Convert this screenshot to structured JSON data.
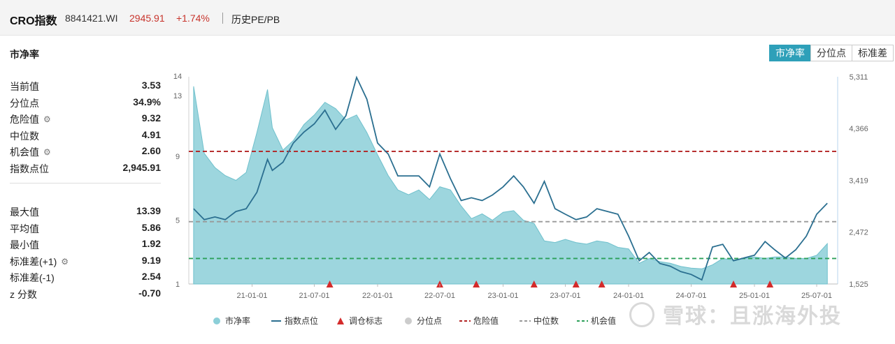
{
  "header": {
    "title": "CRO指数",
    "code": "8841421.WI",
    "price": "2945.91",
    "change": "+1.74%",
    "tab": "历史PE/PB"
  },
  "metric_title": "市净率",
  "stats_top": [
    {
      "label": "当前值",
      "value": "3.53",
      "gear": false
    },
    {
      "label": "分位点",
      "value": "34.9%",
      "gear": false
    },
    {
      "label": "危险值",
      "value": "9.32",
      "gear": true
    },
    {
      "label": "中位数",
      "value": "4.91",
      "gear": false
    },
    {
      "label": "机会值",
      "value": "2.60",
      "gear": true
    },
    {
      "label": "指数点位",
      "value": "2,945.91",
      "gear": false
    }
  ],
  "stats_bottom": [
    {
      "label": "最大值",
      "value": "13.39",
      "gear": false
    },
    {
      "label": "平均值",
      "value": "5.86",
      "gear": false
    },
    {
      "label": "最小值",
      "value": "1.92",
      "gear": false
    },
    {
      "label": "标准差(+1)",
      "value": "9.19",
      "gear": true
    },
    {
      "label": "标准差(-1)",
      "value": "2.54",
      "gear": false
    },
    {
      "label": "z 分数",
      "value": "-0.70",
      "gear": false
    }
  ],
  "toggle": [
    "市净率",
    "分位点",
    "标准差"
  ],
  "watermark": "雪球：且涨海外投",
  "colors": {
    "area": "#8ccfd8",
    "index_line": "#2b6f90",
    "danger": "#b22222",
    "median": "#999999",
    "opportunity": "#2ca05a",
    "marker": "#d42b2b",
    "accent": "#2ea0b9",
    "up": "#c8342c"
  },
  "chart_data": {
    "type": "area",
    "x_ticks": [
      "21-01-01",
      "21-07-01",
      "22-01-01",
      "22-07-01",
      "23-01-01",
      "23-07-01",
      "24-01-01",
      "24-07-01",
      "25-01-01",
      "25-07-01"
    ],
    "y_left": {
      "ticks": [
        "1",
        "5",
        "9",
        "13",
        "14"
      ],
      "range": [
        1,
        14
      ]
    },
    "y_right": {
      "ticks": [
        "1,525",
        "2,472",
        "3,419",
        "4,366",
        "5,311"
      ],
      "range": [
        1525,
        5311
      ]
    },
    "reference_lines": [
      {
        "name": "危险值",
        "value": 9.32,
        "style": "dashed"
      },
      {
        "name": "中位数",
        "value": 4.91,
        "style": "dashed"
      },
      {
        "name": "机会值",
        "value": 2.6,
        "style": "dashed"
      }
    ],
    "series": [
      {
        "name": "市净率",
        "axis": "left",
        "x": [
          "2020-07-15",
          "2020-08-15",
          "2020-09-15",
          "2020-10-15",
          "2020-11-15",
          "2020-12-15",
          "2021-01-15",
          "2021-02-15",
          "2021-03-01",
          "2021-04-01",
          "2021-05-01",
          "2021-06-01",
          "2021-07-01",
          "2021-08-01",
          "2021-09-01",
          "2021-10-01",
          "2021-11-01",
          "2021-12-01",
          "2022-01-01",
          "2022-02-01",
          "2022-03-01",
          "2022-04-01",
          "2022-05-01",
          "2022-06-01",
          "2022-07-01",
          "2022-08-01",
          "2022-09-01",
          "2022-10-01",
          "2022-11-01",
          "2022-12-01",
          "2023-01-01",
          "2023-02-01",
          "2023-03-01",
          "2023-04-01",
          "2023-05-01",
          "2023-06-01",
          "2023-07-01",
          "2023-08-01",
          "2023-09-01",
          "2023-10-01",
          "2023-11-01",
          "2023-12-01",
          "2024-01-01",
          "2024-02-01",
          "2024-03-01",
          "2024-04-01",
          "2024-05-01",
          "2024-06-01",
          "2024-07-01",
          "2024-08-01",
          "2024-09-01",
          "2024-10-01",
          "2024-11-01",
          "2024-12-01",
          "2025-01-01",
          "2025-02-01",
          "2025-03-01",
          "2025-04-01",
          "2025-05-01",
          "2025-06-01",
          "2025-07-01",
          "2025-08-01"
        ],
        "values": [
          13.4,
          9.2,
          8.3,
          7.8,
          7.5,
          8.0,
          10.5,
          13.2,
          10.8,
          9.4,
          10.0,
          11.0,
          11.6,
          12.4,
          12.0,
          11.3,
          11.6,
          10.5,
          9.1,
          7.8,
          6.9,
          6.6,
          6.9,
          6.3,
          7.1,
          6.9,
          5.9,
          5.1,
          5.4,
          5.0,
          5.5,
          5.6,
          5.0,
          4.8,
          3.7,
          3.6,
          3.8,
          3.6,
          3.5,
          3.7,
          3.6,
          3.3,
          3.2,
          2.3,
          2.6,
          2.4,
          2.3,
          2.1,
          2.0,
          1.95,
          2.2,
          2.6,
          2.5,
          2.6,
          2.7,
          2.6,
          2.7,
          2.7,
          2.6,
          2.6,
          2.8,
          3.53
        ]
      },
      {
        "name": "指数点位",
        "axis": "right",
        "x": [
          "2020-07-15",
          "2020-08-15",
          "2020-09-15",
          "2020-10-15",
          "2020-11-15",
          "2020-12-15",
          "2021-01-15",
          "2021-02-15",
          "2021-03-01",
          "2021-04-01",
          "2021-05-01",
          "2021-06-01",
          "2021-07-01",
          "2021-08-01",
          "2021-09-01",
          "2021-10-01",
          "2021-11-01",
          "2021-12-01",
          "2022-01-01",
          "2022-02-01",
          "2022-03-01",
          "2022-04-01",
          "2022-05-01",
          "2022-06-01",
          "2022-07-01",
          "2022-08-01",
          "2022-09-01",
          "2022-10-01",
          "2022-11-01",
          "2022-12-01",
          "2023-01-01",
          "2023-02-01",
          "2023-03-01",
          "2023-04-01",
          "2023-05-01",
          "2023-06-01",
          "2023-07-01",
          "2023-08-01",
          "2023-09-01",
          "2023-10-01",
          "2023-11-01",
          "2023-12-01",
          "2024-01-01",
          "2024-02-01",
          "2024-03-01",
          "2024-04-01",
          "2024-05-01",
          "2024-06-01",
          "2024-07-01",
          "2024-08-01",
          "2024-09-01",
          "2024-10-01",
          "2024-11-01",
          "2024-12-01",
          "2025-01-01",
          "2025-02-01",
          "2025-03-01",
          "2025-04-01",
          "2025-05-01",
          "2025-06-01",
          "2025-07-01",
          "2025-08-01"
        ],
        "values": [
          2900,
          2700,
          2750,
          2700,
          2850,
          2900,
          3200,
          3800,
          3600,
          3750,
          4100,
          4300,
          4450,
          4700,
          4350,
          4600,
          5300,
          4900,
          4100,
          3900,
          3500,
          3500,
          3500,
          3300,
          3900,
          3450,
          3050,
          3100,
          3050,
          3150,
          3300,
          3500,
          3300,
          3000,
          3400,
          2900,
          2800,
          2700,
          2750,
          2900,
          2850,
          2800,
          2400,
          1950,
          2100,
          1900,
          1850,
          1750,
          1700,
          1600,
          2200,
          2250,
          1950,
          2000,
          2050,
          2300,
          2150,
          2000,
          2150,
          2400,
          2800,
          3000
        ]
      }
    ],
    "rebalance_markers": [
      "2021-08-15",
      "2022-07-01",
      "2022-10-15",
      "2023-04-01",
      "2023-08-01",
      "2023-10-15",
      "2024-11-01",
      "2025-02-15"
    ],
    "legend": [
      "市净率",
      "指数点位",
      "调仓标志",
      "分位点",
      "危险值",
      "中位数",
      "机会值"
    ]
  }
}
